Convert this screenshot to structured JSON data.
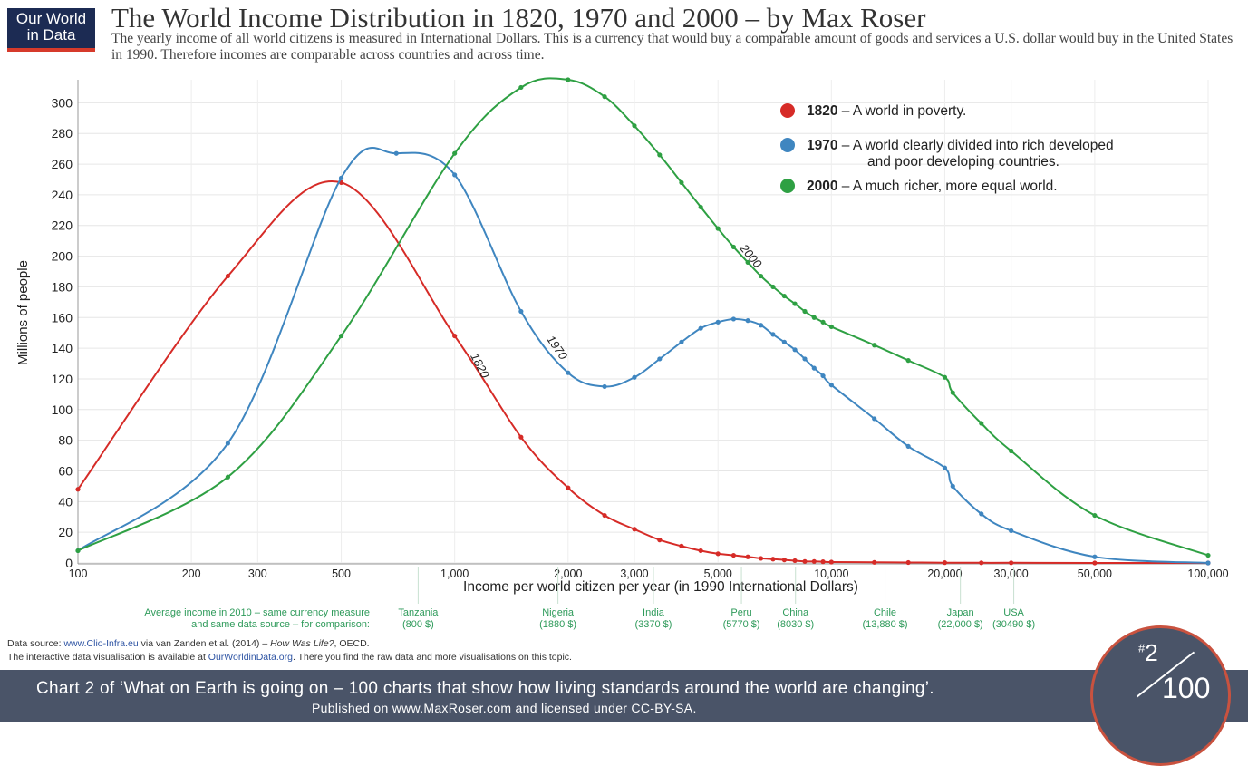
{
  "logo": {
    "line1": "Our World",
    "line2": "in Data"
  },
  "title": "The World Income Distribution in 1820, 1970 and 2000 – by Max Roser",
  "subtitle": "The yearly income of all world citizens is measured in International Dollars. This is a currency that would buy a comparable amount of goods and services a U.S. dollar would buy in the United States in 1990. Therefore incomes are comparable across countries and across time.",
  "colors": {
    "s1820": "#d62b27",
    "s1970": "#3f86c0",
    "s2000": "#2ea043",
    "footer_bg": "#4a5468",
    "country": "#2e9a5a"
  },
  "chart_data": {
    "type": "line",
    "xscale": "log",
    "xlim": [
      100,
      100000
    ],
    "ylim": [
      0,
      315
    ],
    "ylabel": "Millions of people",
    "xlabel": "Income per world citizen per year (in 1990 International Dollars)",
    "yticks": [
      0,
      20,
      40,
      60,
      80,
      100,
      120,
      140,
      160,
      180,
      200,
      220,
      240,
      260,
      280,
      300
    ],
    "xticks": [
      {
        "v": 100,
        "label": "100"
      },
      {
        "v": 200,
        "label": "200"
      },
      {
        "v": 300,
        "label": "300"
      },
      {
        "v": 500,
        "label": "500"
      },
      {
        "v": 1000,
        "label": "1,000"
      },
      {
        "v": 2000,
        "label": "2,000"
      },
      {
        "v": 3000,
        "label": "3,000"
      },
      {
        "v": 5000,
        "label": "5,000"
      },
      {
        "v": 10000,
        "label": "10,000"
      },
      {
        "v": 20000,
        "label": "20,000"
      },
      {
        "v": 30000,
        "label": "30,000"
      },
      {
        "v": 50000,
        "label": "50,000"
      },
      {
        "v": 100000,
        "label": "100,000"
      }
    ],
    "series": [
      {
        "name": "1820",
        "key": "s1820",
        "points": [
          [
            100,
            48
          ],
          [
            250,
            187
          ],
          [
            500,
            248
          ],
          [
            1000,
            148
          ],
          [
            1500,
            82
          ],
          [
            2000,
            49
          ],
          [
            2500,
            31
          ],
          [
            3000,
            22
          ],
          [
            3500,
            15
          ],
          [
            4000,
            11
          ],
          [
            4500,
            8
          ],
          [
            5000,
            6
          ],
          [
            5500,
            5
          ],
          [
            6000,
            4
          ],
          [
            6500,
            3
          ],
          [
            7000,
            2.5
          ],
          [
            7500,
            2
          ],
          [
            8000,
            1.5
          ],
          [
            8500,
            1
          ],
          [
            9000,
            1
          ],
          [
            9500,
            0.8
          ],
          [
            10000,
            0.6
          ],
          [
            13000,
            0.4
          ],
          [
            16000,
            0.3
          ],
          [
            20000,
            0.2
          ],
          [
            25000,
            0.1
          ],
          [
            30000,
            0.1
          ],
          [
            50000,
            0
          ],
          [
            100000,
            0
          ]
        ],
        "label": {
          "x": 1100,
          "y": 135,
          "rotate": 62
        }
      },
      {
        "name": "1970",
        "key": "s1970",
        "points": [
          [
            100,
            8
          ],
          [
            250,
            78
          ],
          [
            500,
            251
          ],
          [
            700,
            267
          ],
          [
            1000,
            253
          ],
          [
            1500,
            164
          ],
          [
            2000,
            124
          ],
          [
            2500,
            115
          ],
          [
            3000,
            121
          ],
          [
            3500,
            133
          ],
          [
            4000,
            144
          ],
          [
            4500,
            153
          ],
          [
            5000,
            157
          ],
          [
            5500,
            159
          ],
          [
            6000,
            158
          ],
          [
            6500,
            155
          ],
          [
            7000,
            149
          ],
          [
            7500,
            144
          ],
          [
            8000,
            139
          ],
          [
            8500,
            133
          ],
          [
            9000,
            127
          ],
          [
            9500,
            122
          ],
          [
            10000,
            116
          ],
          [
            13000,
            94
          ],
          [
            16000,
            76
          ],
          [
            20000,
            62
          ],
          [
            21000,
            50
          ],
          [
            25000,
            32
          ],
          [
            30000,
            21
          ],
          [
            50000,
            4
          ],
          [
            100000,
            0
          ]
        ],
        "label": {
          "x": 1750,
          "y": 146,
          "rotate": 55
        }
      },
      {
        "name": "2000",
        "key": "s2000",
        "points": [
          [
            100,
            8
          ],
          [
            250,
            56
          ],
          [
            500,
            148
          ],
          [
            1000,
            267
          ],
          [
            1500,
            310
          ],
          [
            2000,
            315
          ],
          [
            2500,
            304
          ],
          [
            3000,
            285
          ],
          [
            3500,
            266
          ],
          [
            4000,
            248
          ],
          [
            4500,
            232
          ],
          [
            5000,
            218
          ],
          [
            5500,
            206
          ],
          [
            6000,
            196
          ],
          [
            6500,
            187
          ],
          [
            7000,
            180
          ],
          [
            7500,
            174
          ],
          [
            8000,
            169
          ],
          [
            8500,
            164
          ],
          [
            9000,
            160
          ],
          [
            9500,
            157
          ],
          [
            10000,
            154
          ],
          [
            13000,
            142
          ],
          [
            16000,
            132
          ],
          [
            20000,
            121
          ],
          [
            21000,
            111
          ],
          [
            25000,
            91
          ],
          [
            30000,
            73
          ],
          [
            50000,
            31
          ],
          [
            100000,
            5
          ]
        ],
        "label": {
          "x": 5700,
          "y": 205,
          "rotate": 50
        }
      }
    ],
    "legend": [
      {
        "key": "s1820",
        "year": "1820",
        "text": " – A world in poverty.",
        "text2": ""
      },
      {
        "key": "s1970",
        "year": "1970",
        "text": " – A world clearly divided into rich developed",
        "text2": "and poor developing countries."
      },
      {
        "key": "s2000",
        "year": "2000",
        "text": " – A much richer, more equal world.",
        "text2": ""
      }
    ],
    "reference_intro": [
      "Average income in 2010 – same currency measure",
      "and same data source – for comparison:"
    ],
    "reference_countries": [
      {
        "name": "Tanzania",
        "value": "(800 $)",
        "v": 800
      },
      {
        "name": "Nigeria",
        "value": "(1880 $)",
        "v": 1880
      },
      {
        "name": "India",
        "value": "(3370 $)",
        "v": 3370
      },
      {
        "name": "Peru",
        "value": "(5770 $)",
        "v": 5770
      },
      {
        "name": "China",
        "value": "(8030 $)",
        "v": 8030
      },
      {
        "name": "Chile",
        "value": "(13,880 $)",
        "v": 13880
      },
      {
        "name": "Japan",
        "value": "(22,000 $)",
        "v": 22000
      },
      {
        "name": "USA",
        "value": "(30490 $)",
        "v": 30490
      }
    ]
  },
  "source": {
    "prefix": "Data source:  ",
    "link": "www.Clio-Infra.eu",
    "rest": " via van Zanden et al. (2014) – ",
    "italic": "How Was Life?",
    "tail": ", OECD."
  },
  "interactive": {
    "prefix": "The interactive data visualisation is available at ",
    "link": "OurWorldinData.org",
    "tail": ". There you find the raw data and more visualisations on this topic."
  },
  "footer": {
    "line1": "Chart 2 of ‘What on Earth is going on – 100 charts that show how living standards around the world are changing’.",
    "line2": "Published on www.MaxRoser.com and licensed under CC-BY-SA."
  },
  "badge": {
    "hash": "#",
    "num": "2",
    "total": "100"
  }
}
